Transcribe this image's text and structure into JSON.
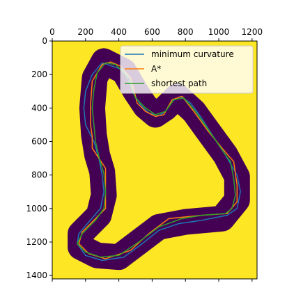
{
  "chart_data": {
    "type": "line",
    "image_type": "heatmap",
    "colormap": "viridis",
    "background_color": "#fde725",
    "track_color": "#440154",
    "xlim": [
      0,
      1230
    ],
    "ylim": [
      1420,
      0
    ],
    "x_axis_position": "top",
    "x_ticks": [
      {
        "value": 0,
        "label": "0"
      },
      {
        "value": 200,
        "label": "200"
      },
      {
        "value": 400,
        "label": "400"
      },
      {
        "value": 600,
        "label": "600"
      },
      {
        "value": 800,
        "label": "800"
      },
      {
        "value": 1000,
        "label": "1000"
      },
      {
        "value": 1200,
        "label": "1200"
      }
    ],
    "y_ticks": [
      {
        "value": 0,
        "label": "0"
      },
      {
        "value": 200,
        "label": "200"
      },
      {
        "value": 400,
        "label": "400"
      },
      {
        "value": 600,
        "label": "600"
      },
      {
        "value": 800,
        "label": "800"
      },
      {
        "value": 1000,
        "label": "1000"
      },
      {
        "value": 1200,
        "label": "1200"
      },
      {
        "value": 1400,
        "label": "1400"
      }
    ],
    "grid": false,
    "legend_position": "top-right",
    "track_width": 155,
    "track_centerline": [
      [
        310,
        120
      ],
      [
        430,
        180
      ],
      [
        500,
        300
      ],
      [
        560,
        390
      ],
      [
        620,
        440
      ],
      [
        680,
        400
      ],
      [
        750,
        330
      ],
      [
        850,
        420
      ],
      [
        930,
        530
      ],
      [
        1040,
        680
      ],
      [
        1110,
        810
      ],
      [
        1110,
        950
      ],
      [
        1020,
        1060
      ],
      [
        800,
        1080
      ],
      [
        640,
        1110
      ],
      [
        520,
        1200
      ],
      [
        400,
        1290
      ],
      [
        270,
        1280
      ],
      [
        170,
        1230
      ],
      [
        170,
        1150
      ],
      [
        280,
        1040
      ],
      [
        310,
        920
      ],
      [
        300,
        780
      ],
      [
        270,
        680
      ],
      [
        250,
        560
      ],
      [
        240,
        400
      ],
      [
        255,
        220
      ],
      [
        310,
        120
      ]
    ],
    "series": [
      {
        "name": "minimum curvature",
        "color": "#1f77b4",
        "points": [
          [
            300,
            130
          ],
          [
            420,
            170
          ],
          [
            470,
            230
          ],
          [
            480,
            300
          ],
          [
            530,
            380
          ],
          [
            580,
            430
          ],
          [
            640,
            445
          ],
          [
            680,
            420
          ],
          [
            720,
            360
          ],
          [
            770,
            330
          ],
          [
            830,
            370
          ],
          [
            890,
            450
          ],
          [
            960,
            560
          ],
          [
            1040,
            680
          ],
          [
            1110,
            800
          ],
          [
            1130,
            900
          ],
          [
            1110,
            1000
          ],
          [
            1050,
            1040
          ],
          [
            900,
            1070
          ],
          [
            760,
            1090
          ],
          [
            640,
            1130
          ],
          [
            540,
            1210
          ],
          [
            430,
            1290
          ],
          [
            300,
            1310
          ],
          [
            200,
            1280
          ],
          [
            150,
            1210
          ],
          [
            160,
            1150
          ],
          [
            220,
            1080
          ],
          [
            290,
            1000
          ],
          [
            310,
            900
          ],
          [
            300,
            800
          ],
          [
            280,
            700
          ],
          [
            250,
            600
          ],
          [
            200,
            500
          ],
          [
            190,
            400
          ],
          [
            200,
            300
          ],
          [
            240,
            200
          ],
          [
            300,
            130
          ]
        ]
      },
      {
        "name": "A*",
        "color": "#ff7f0e",
        "points": [
          [
            490,
            290
          ],
          [
            510,
            370
          ],
          [
            560,
            420
          ],
          [
            620,
            450
          ],
          [
            670,
            440
          ],
          [
            720,
            350
          ],
          [
            780,
            330
          ],
          [
            850,
            420
          ],
          [
            930,
            530
          ],
          [
            1020,
            640
          ],
          [
            1090,
            720
          ],
          [
            1110,
            860
          ],
          [
            1110,
            960
          ],
          [
            1050,
            1030
          ],
          [
            900,
            1040
          ],
          [
            700,
            1060
          ],
          [
            580,
            1150
          ],
          [
            470,
            1250
          ],
          [
            320,
            1300
          ],
          [
            220,
            1270
          ],
          [
            160,
            1210
          ],
          [
            180,
            1140
          ],
          [
            320,
            1000
          ],
          [
            320,
            760
          ],
          [
            240,
            640
          ],
          [
            240,
            570
          ],
          [
            230,
            500
          ],
          [
            230,
            380
          ],
          [
            240,
            240
          ],
          [
            300,
            140
          ],
          [
            350,
            125
          ],
          [
            410,
            150
          ],
          [
            470,
            220
          ],
          [
            490,
            290
          ]
        ]
      },
      {
        "name": "shortest path",
        "color": "#2ca02c",
        "points": [
          [
            320,
            130
          ],
          [
            380,
            140
          ],
          [
            440,
            200
          ],
          [
            470,
            260
          ],
          [
            500,
            340
          ],
          [
            560,
            400
          ],
          [
            620,
            440
          ],
          [
            680,
            420
          ],
          [
            730,
            350
          ],
          [
            790,
            340
          ],
          [
            860,
            420
          ],
          [
            930,
            520
          ],
          [
            1000,
            620
          ],
          [
            1070,
            720
          ],
          [
            1090,
            820
          ],
          [
            1100,
            920
          ],
          [
            1080,
            1000
          ],
          [
            1040,
            1030
          ],
          [
            900,
            1040
          ],
          [
            780,
            1060
          ],
          [
            640,
            1110
          ],
          [
            520,
            1200
          ],
          [
            400,
            1280
          ],
          [
            290,
            1290
          ],
          [
            200,
            1260
          ],
          [
            150,
            1210
          ],
          [
            180,
            1150
          ],
          [
            260,
            1070
          ],
          [
            310,
            1000
          ],
          [
            320,
            900
          ],
          [
            310,
            790
          ],
          [
            280,
            690
          ],
          [
            260,
            600
          ],
          [
            250,
            500
          ],
          [
            240,
            400
          ],
          [
            250,
            290
          ],
          [
            270,
            190
          ],
          [
            320,
            130
          ]
        ]
      }
    ]
  }
}
